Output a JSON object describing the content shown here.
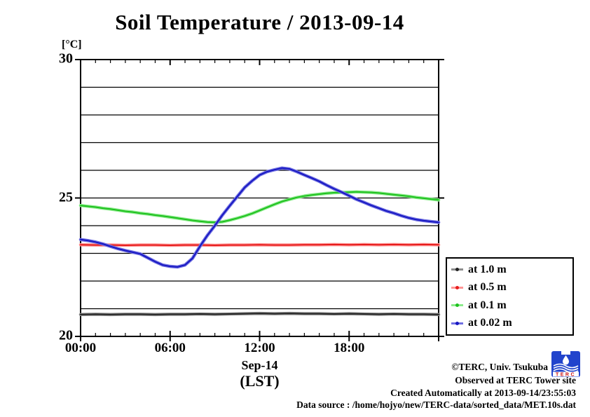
{
  "chart_data": {
    "type": "line",
    "title": "Soil Temperature / 2013-09-14",
    "y_unit": "[°C]",
    "x_axis": {
      "range_hours": [
        0,
        24
      ],
      "tick_hours": [
        0,
        6,
        12,
        18
      ],
      "tick_labels": [
        "00:00",
        "06:00",
        "12:00",
        "18:00"
      ],
      "minor_tick_step_hours": 1,
      "date_label": "Sep-14",
      "tz_label": "(LST)"
    },
    "y_axis": {
      "range": [
        20,
        30
      ],
      "grid_step": 1,
      "major_ticks": [
        30,
        25,
        20
      ],
      "major_tick_labels": [
        "30",
        "25",
        "20"
      ]
    },
    "legend_position": "outside-right-bottom",
    "grid": true,
    "series": [
      {
        "id": "depth-1.0m",
        "name": "at 1.0 m",
        "core_color": "#222222",
        "halo_color": "#8c8c8c",
        "x_start": 0,
        "x_step": 1,
        "values": [
          20.79,
          20.8,
          20.79,
          20.8,
          20.8,
          20.79,
          20.8,
          20.8,
          20.81,
          20.8,
          20.81,
          20.82,
          20.83,
          20.82,
          20.83,
          20.82,
          20.82,
          20.81,
          20.82,
          20.81,
          20.8,
          20.81,
          20.8,
          20.8,
          20.79
        ]
      },
      {
        "id": "depth-0.5m",
        "name": "at 0.5 m",
        "core_color": "#e61c1c",
        "halo_color": "#ff9595",
        "x_start": 0,
        "x_step": 1,
        "values": [
          23.31,
          23.3,
          23.3,
          23.29,
          23.3,
          23.3,
          23.29,
          23.3,
          23.3,
          23.29,
          23.3,
          23.3,
          23.31,
          23.3,
          23.3,
          23.31,
          23.31,
          23.32,
          23.31,
          23.32,
          23.31,
          23.32,
          23.31,
          23.32,
          23.31
        ]
      },
      {
        "id": "depth-0.1m",
        "name": "at 0.1 m",
        "core_color": "#1fc11f",
        "halo_color": "#8ceb8c",
        "x_start": 0,
        "x_step": 0.5,
        "values": [
          24.73,
          24.7,
          24.67,
          24.63,
          24.6,
          24.56,
          24.52,
          24.49,
          24.45,
          24.42,
          24.38,
          24.35,
          24.31,
          24.27,
          24.23,
          24.19,
          24.16,
          24.13,
          24.12,
          24.14,
          24.2,
          24.27,
          24.35,
          24.44,
          24.55,
          24.66,
          24.77,
          24.87,
          24.95,
          25.02,
          25.07,
          25.11,
          25.14,
          25.17,
          25.19,
          25.2,
          25.21,
          25.22,
          25.21,
          25.2,
          25.18,
          25.15,
          25.12,
          25.09,
          25.06,
          25.02,
          24.99,
          24.96,
          24.93
        ]
      },
      {
        "id": "depth-0.02m",
        "name": "at 0.02 m",
        "core_color": "#1818c2",
        "halo_color": "#7070e2",
        "x_start": 0,
        "x_step": 0.5,
        "values": [
          23.5,
          23.46,
          23.41,
          23.34,
          23.25,
          23.17,
          23.1,
          23.04,
          22.98,
          22.84,
          22.7,
          22.58,
          22.53,
          22.51,
          22.58,
          22.82,
          23.25,
          23.65,
          24.0,
          24.38,
          24.72,
          25.05,
          25.38,
          25.62,
          25.83,
          25.95,
          26.02,
          26.08,
          26.05,
          25.95,
          25.83,
          25.72,
          25.6,
          25.46,
          25.33,
          25.21,
          25.08,
          24.95,
          24.84,
          24.73,
          24.63,
          24.53,
          24.45,
          24.36,
          24.28,
          24.22,
          24.18,
          24.15,
          24.12
        ]
      }
    ]
  },
  "footer": {
    "credit": "©TERC, Univ. Tsukuba",
    "observed": "Observed at TERC Tower site",
    "created": "Created Automatically at 2013-09-14/23:55:03",
    "source": "Data source : /home/hojyo/new/TERC-data/sorted_data/MET.10s.dat"
  },
  "logo": {
    "text": "TERC",
    "blue": "#2244cc",
    "red": "#cc1111"
  }
}
